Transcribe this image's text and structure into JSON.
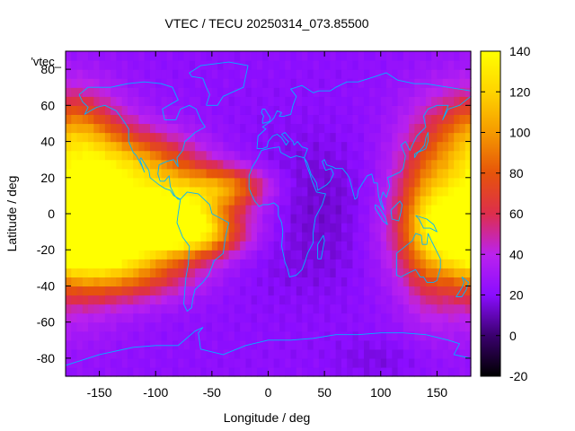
{
  "chart_data": {
    "type": "heatmap",
    "title": "VTEC / TECU 20250314_073.85500",
    "xlabel": "Longitude / deg",
    "ylabel": "Latitude / deg",
    "xlim": [
      -180,
      180
    ],
    "ylim": [
      -90,
      90
    ],
    "xticks": [
      "-150",
      "-100",
      "-50",
      "0",
      "50",
      "100",
      "150"
    ],
    "yticks": [
      "-80",
      "-60",
      "-40",
      "-20",
      "0",
      "20",
      "40",
      "60",
      "80"
    ],
    "colorbar": {
      "range": [
        -20,
        140
      ],
      "ticks": [
        "-20",
        "0",
        "20",
        "40",
        "60",
        "80",
        "100",
        "120",
        "140"
      ],
      "palette": [
        "#000000",
        "#3a006e",
        "#8a0dff",
        "#bb22ee",
        "#dd2e4c",
        "#e6540a",
        "#f59a00",
        "#ffd400",
        "#ffff00"
      ]
    },
    "legend_label": "'vtec_",
    "coastline_color": "#00b4ff",
    "background_tec": 22,
    "anomalies": [
      {
        "lon": -150,
        "lat": -12,
        "amp": 105,
        "slon": 45,
        "slat": 16
      },
      {
        "lon": -120,
        "lat": 25,
        "amp": 75,
        "slon": 40,
        "slat": 14
      },
      {
        "lon": -110,
        "lat": -5,
        "amp": 70,
        "slon": 55,
        "slat": 12
      },
      {
        "lon": -75,
        "lat": 0,
        "amp": 55,
        "slon": 25,
        "slat": 15
      },
      {
        "lon": -35,
        "lat": 15,
        "amp": 60,
        "slon": 25,
        "slat": 8
      },
      {
        "lon": -55,
        "lat": -12,
        "amp": 35,
        "slon": 25,
        "slat": 8
      },
      {
        "lon": -120,
        "lat": -35,
        "amp": 30,
        "slon": 40,
        "slat": 10
      },
      {
        "lon": 175,
        "lat": 5,
        "amp": 80,
        "slon": 40,
        "slat": 35
      },
      {
        "lon": 140,
        "lat": -5,
        "amp": 25,
        "slon": 15,
        "slat": 30
      },
      {
        "lon": -170,
        "lat": 45,
        "amp": 40,
        "slon": 25,
        "slat": 15
      },
      {
        "lon": 40,
        "lat": 0,
        "amp": -10,
        "slon": 60,
        "slat": 30
      },
      {
        "lon": 100,
        "lat": -80,
        "amp": -6,
        "slon": 30,
        "slat": 8
      }
    ]
  }
}
